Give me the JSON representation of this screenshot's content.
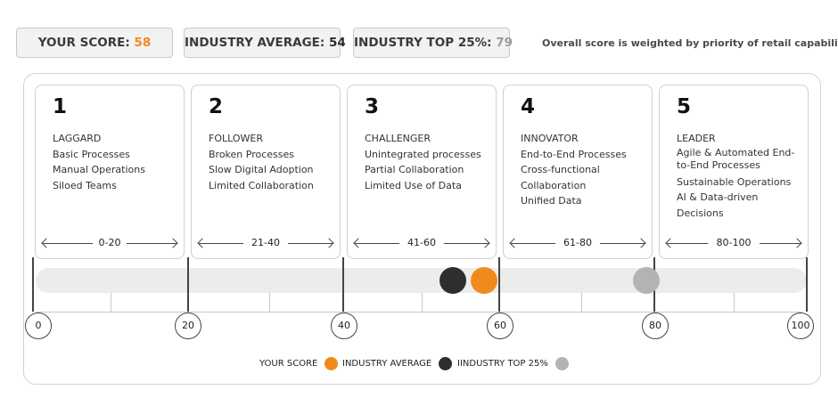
{
  "scores": {
    "your_label": "YOUR SCORE:",
    "your_value": "58",
    "avg_label": "INDUSTRY AVERAGE:",
    "avg_value": "54",
    "top_label": "INDUSTRY TOP 25%:",
    "top_value": "79",
    "note": "Overall score is weighted by priority of retail capabilities"
  },
  "levels": [
    {
      "number": "1",
      "title": "LAGGARD",
      "lines": [
        "Basic Processes",
        "Manual Operations",
        "Siloed Teams"
      ],
      "range": "0-20"
    },
    {
      "number": "2",
      "title": "FOLLOWER",
      "lines": [
        "Broken Processes",
        "Slow Digital Adoption",
        "Limited Collaboration"
      ],
      "range": "21-40"
    },
    {
      "number": "3",
      "title": "CHALLENGER",
      "lines": [
        "Unintegrated processes",
        "Partial Collaboration",
        "Limited Use of Data"
      ],
      "range": "41-60"
    },
    {
      "number": "4",
      "title": "INNOVATOR",
      "lines": [
        "End-to-End Processes",
        "Cross-functional Collaboration",
        "Unified Data"
      ],
      "range": "61-80"
    },
    {
      "number": "5",
      "title": "LEADER",
      "lines": [
        "Agile & Automated End-to-End Processes",
        "Sustainable Operations",
        "AI & Data-driven Decisions"
      ],
      "range": "80-100"
    }
  ],
  "scale": {
    "ticks": [
      "0",
      "20",
      "40",
      "60",
      "80",
      "100"
    ],
    "min": 0,
    "max": 100
  },
  "markers": {
    "your_score": 58,
    "industry_average": 54,
    "industry_top25": 79
  },
  "legend": {
    "your": "YOUR SCORE",
    "avg": "INDUSTRY AVERAGE",
    "top": "IINDUSTRY TOP 25%"
  },
  "colors": {
    "orange": "#f18a1d",
    "dark": "#2e2e2e",
    "gray": "#b3b3b3"
  }
}
